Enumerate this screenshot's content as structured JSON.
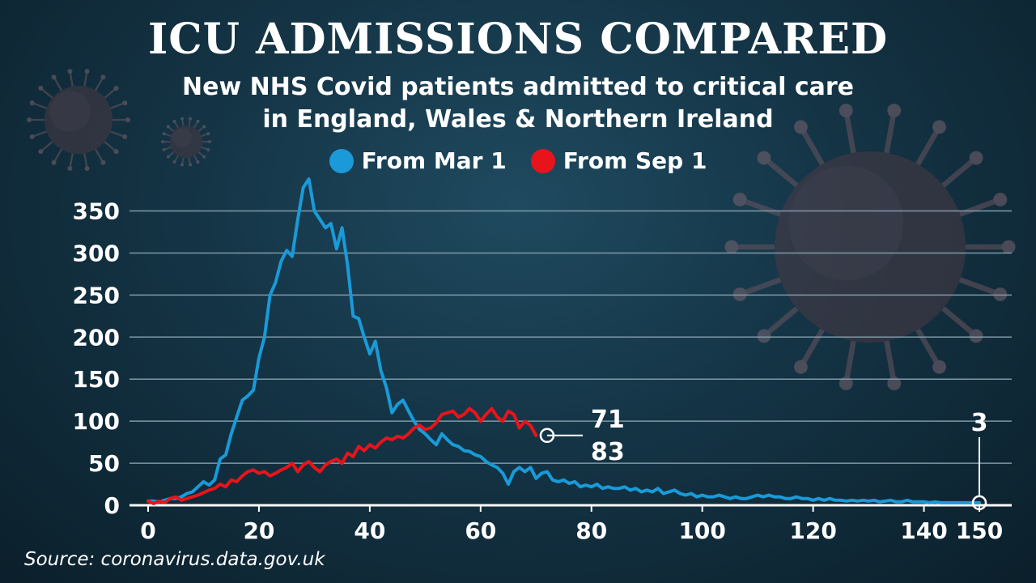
{
  "title": "ICU ADMISSIONS COMPARED",
  "subtitle_line1": "New NHS Covid patients admitted to critical care",
  "subtitle_line2": "in England, Wales & Northern Ireland",
  "source": "Source: coronavirus.data.gov.uk",
  "colors": {
    "series_mar": "#1a9ad8",
    "series_sep": "#e8141b",
    "grid": "#7f99a8"
  },
  "chart_data": {
    "type": "line",
    "title": "ICU ADMISSIONS COMPARED",
    "xlabel": "",
    "ylabel": "",
    "xlim": [
      0,
      150
    ],
    "ylim": [
      0,
      390
    ],
    "x_ticks": [
      0,
      20,
      40,
      60,
      80,
      100,
      120,
      140,
      150
    ],
    "y_ticks": [
      0,
      50,
      100,
      150,
      200,
      250,
      300,
      350
    ],
    "grid": "horizontal",
    "legend_position": "top-center",
    "series": [
      {
        "name": "From Mar 1",
        "color": "#1a9ad8",
        "values": [
          5,
          5,
          4,
          6,
          8,
          8,
          10,
          14,
          16,
          22,
          28,
          24,
          30,
          55,
          60,
          85,
          105,
          125,
          130,
          137,
          175,
          200,
          250,
          265,
          290,
          303,
          296,
          340,
          378,
          388,
          350,
          340,
          330,
          335,
          305,
          330,
          285,
          225,
          222,
          200,
          180,
          195,
          160,
          140,
          110,
          120,
          125,
          112,
          100,
          90,
          85,
          78,
          72,
          85,
          78,
          72,
          70,
          65,
          64,
          60,
          58,
          52,
          48,
          45,
          38,
          25,
          40,
          45,
          40,
          45,
          32,
          38,
          40,
          30,
          28,
          30,
          26,
          28,
          22,
          24,
          22,
          25,
          20,
          22,
          20,
          20,
          22,
          18,
          20,
          16,
          18,
          16,
          20,
          14,
          16,
          18,
          14,
          12,
          14,
          10,
          12,
          10,
          10,
          12,
          10,
          8,
          10,
          8,
          8,
          10,
          12,
          10,
          12,
          10,
          10,
          8,
          8,
          10,
          8,
          8,
          6,
          8,
          6,
          8,
          6,
          6,
          5,
          6,
          5,
          6,
          5,
          6,
          4,
          5,
          6,
          4,
          4,
          6,
          4,
          4,
          4,
          3,
          4,
          3,
          3,
          3,
          3,
          3,
          3,
          3,
          3
        ]
      },
      {
        "name": "From Sep 1",
        "color": "#e8141b",
        "values": [
          5,
          2,
          5,
          3,
          8,
          10,
          6,
          8,
          10,
          12,
          15,
          18,
          20,
          25,
          22,
          30,
          28,
          35,
          40,
          42,
          38,
          40,
          35,
          38,
          42,
          45,
          50,
          40,
          48,
          52,
          45,
          40,
          48,
          52,
          55,
          50,
          62,
          58,
          70,
          65,
          72,
          68,
          75,
          80,
          78,
          82,
          80,
          85,
          92,
          95,
          90,
          92,
          98,
          108,
          110,
          112,
          105,
          108,
          115,
          110,
          100,
          108,
          115,
          105,
          100,
          112,
          108,
          92,
          100,
          95,
          83
        ]
      }
    ],
    "annotations": [
      {
        "series": "From Sep 1",
        "x": 72,
        "y": 83,
        "labels": [
          "71",
          "83"
        ]
      },
      {
        "series": "From Mar 1",
        "x": 150,
        "y": 3,
        "label": "3"
      }
    ]
  }
}
